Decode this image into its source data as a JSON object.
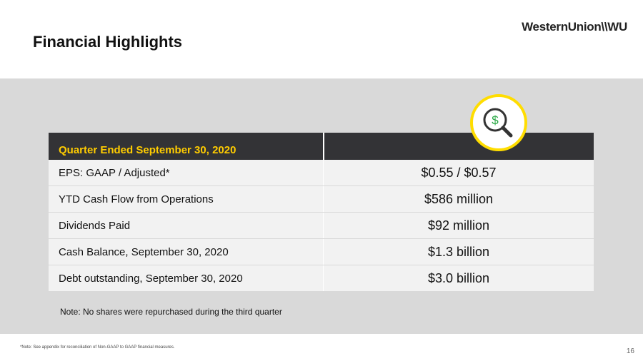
{
  "header": {
    "title": "Financial Highlights",
    "logo": "WesternUnion\\\\WU"
  },
  "table": {
    "header": "Quarter Ended September 30, 2020",
    "rows": [
      [
        "EPS: GAAP / Adjusted*",
        "$0.55 / $0.57"
      ],
      [
        "YTD Cash Flow from Operations",
        "$586 million"
      ],
      [
        "Dividends Paid",
        "$92 million"
      ],
      [
        "Cash Balance, September 30, 2020",
        "$1.3 billion"
      ],
      [
        "Debt outstanding, September 30, 2020",
        "$3.0 billion"
      ]
    ]
  },
  "note": "Note: No shares were repurchased during the third quarter",
  "footer": {
    "footnote": "*Note: See appendix for reconciliation of Non-GAAP to GAAP financial measures.",
    "page": "16"
  }
}
